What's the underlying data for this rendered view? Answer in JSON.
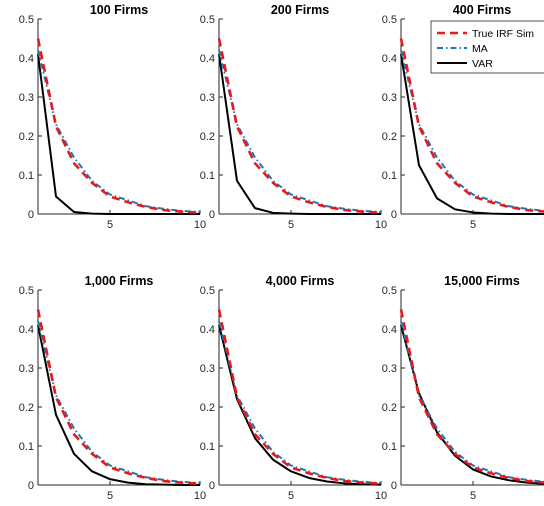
{
  "chart_data": {
    "type": "line",
    "layout": "2x3 grid of panels",
    "x": [
      1,
      2,
      3,
      4,
      5,
      6,
      7,
      8,
      9,
      10
    ],
    "xlim": [
      1,
      10
    ],
    "ylim": [
      0,
      0.5
    ],
    "xticks": [
      "5",
      "10"
    ],
    "yticks": [
      "0",
      "0.1",
      "0.2",
      "0.3",
      "0.4",
      "0.5"
    ],
    "grid": false,
    "legend": {
      "panel": 3,
      "placement": "top-right",
      "entries": [
        {
          "name": "True IRF Sim",
          "color": "#e41a1c",
          "style": "dashed"
        },
        {
          "name": "MA",
          "color": "#1f77b4",
          "style": "dash-dot"
        },
        {
          "name": "VAR",
          "color": "#000000",
          "style": "solid"
        }
      ]
    },
    "panels": [
      {
        "title": "100 Firms",
        "series": [
          {
            "name": "True IRF Sim",
            "values": [
              0.45,
              0.225,
              0.13,
              0.08,
              0.045,
              0.03,
              0.018,
              0.01,
              0.006,
              0.003
            ]
          },
          {
            "name": "MA",
            "values": [
              0.42,
              0.23,
              0.145,
              0.085,
              0.05,
              0.035,
              0.02,
              0.013,
              0.008,
              0.005
            ]
          },
          {
            "name": "VAR",
            "values": [
              0.41,
              0.045,
              0.005,
              0.001,
              0,
              0,
              0,
              0,
              0,
              0
            ]
          }
        ]
      },
      {
        "title": "200 Firms",
        "series": [
          {
            "name": "True IRF Sim",
            "values": [
              0.45,
              0.225,
              0.13,
              0.08,
              0.045,
              0.03,
              0.018,
              0.01,
              0.006,
              0.003
            ]
          },
          {
            "name": "MA",
            "values": [
              0.42,
              0.23,
              0.145,
              0.085,
              0.05,
              0.035,
              0.02,
              0.013,
              0.008,
              0.005
            ]
          },
          {
            "name": "VAR",
            "values": [
              0.41,
              0.085,
              0.015,
              0.003,
              0.001,
              0,
              0,
              0,
              0,
              0
            ]
          }
        ]
      },
      {
        "title": "400 Firms",
        "series": [
          {
            "name": "True IRF Sim",
            "values": [
              0.45,
              0.225,
              0.13,
              0.08,
              0.045,
              0.03,
              0.018,
              0.01,
              0.006,
              0.003
            ]
          },
          {
            "name": "MA",
            "values": [
              0.42,
              0.23,
              0.145,
              0.085,
              0.05,
              0.035,
              0.02,
              0.013,
              0.008,
              0.005
            ]
          },
          {
            "name": "VAR",
            "values": [
              0.41,
              0.125,
              0.04,
              0.012,
              0.004,
              0.001,
              0,
              0,
              0,
              0
            ]
          }
        ]
      },
      {
        "title": "1,000 Firms",
        "series": [
          {
            "name": "True IRF Sim",
            "values": [
              0.45,
              0.225,
              0.13,
              0.08,
              0.045,
              0.03,
              0.018,
              0.01,
              0.006,
              0.003
            ]
          },
          {
            "name": "MA",
            "values": [
              0.42,
              0.23,
              0.145,
              0.085,
              0.05,
              0.035,
              0.02,
              0.013,
              0.008,
              0.005
            ]
          },
          {
            "name": "VAR",
            "values": [
              0.41,
              0.18,
              0.08,
              0.035,
              0.015,
              0.006,
              0.002,
              0.001,
              0,
              0
            ]
          }
        ]
      },
      {
        "title": "4,000 Firms",
        "series": [
          {
            "name": "True IRF Sim",
            "values": [
              0.45,
              0.225,
              0.13,
              0.08,
              0.045,
              0.03,
              0.018,
              0.01,
              0.006,
              0.003
            ]
          },
          {
            "name": "MA",
            "values": [
              0.42,
              0.23,
              0.145,
              0.085,
              0.05,
              0.035,
              0.02,
              0.013,
              0.008,
              0.005
            ]
          },
          {
            "name": "VAR",
            "values": [
              0.41,
              0.22,
              0.12,
              0.065,
              0.035,
              0.018,
              0.009,
              0.004,
              0.002,
              0.001
            ]
          }
        ]
      },
      {
        "title": "15,000 Firms",
        "series": [
          {
            "name": "True IRF Sim",
            "values": [
              0.45,
              0.225,
              0.13,
              0.08,
              0.045,
              0.03,
              0.018,
              0.01,
              0.006,
              0.003
            ]
          },
          {
            "name": "MA",
            "values": [
              0.42,
              0.23,
              0.145,
              0.085,
              0.05,
              0.035,
              0.02,
              0.013,
              0.008,
              0.005
            ]
          },
          {
            "name": "VAR",
            "values": [
              0.41,
              0.235,
              0.135,
              0.075,
              0.04,
              0.022,
              0.012,
              0.006,
              0.003,
              0.001
            ]
          }
        ]
      }
    ]
  }
}
